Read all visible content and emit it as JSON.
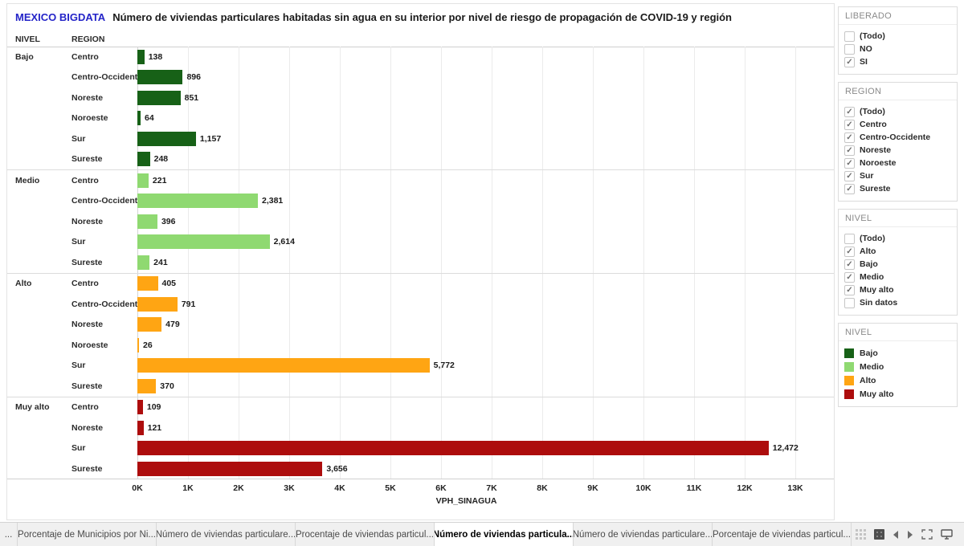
{
  "header": {
    "brand": "MEXICO BIGDATA",
    "title": "Número de viviendas particulares habitadas sin agua en su interior por nivel de riesgo de propagación de COVID-19 y región"
  },
  "columns": {
    "nivel": "NIVEL",
    "region": "REGION"
  },
  "chart_data": {
    "type": "bar",
    "orientation": "horizontal",
    "xlabel": "VPH_SINAGUA",
    "x_ticks": [
      "0K",
      "1K",
      "2K",
      "3K",
      "4K",
      "5K",
      "6K",
      "7K",
      "8K",
      "9K",
      "10K",
      "11K",
      "12K",
      "13K"
    ],
    "xlim": [
      0,
      13000
    ],
    "grid": true,
    "groups": [
      {
        "nivel": "Bajo",
        "color": "#176117",
        "rows": [
          {
            "region": "Centro",
            "value": 138,
            "label": "138"
          },
          {
            "region": "Centro-Occidente",
            "value": 896,
            "label": "896"
          },
          {
            "region": "Noreste",
            "value": 851,
            "label": "851"
          },
          {
            "region": "Noroeste",
            "value": 64,
            "label": "64"
          },
          {
            "region": "Sur",
            "value": 1157,
            "label": "1,157"
          },
          {
            "region": "Sureste",
            "value": 248,
            "label": "248"
          }
        ]
      },
      {
        "nivel": "Medio",
        "color": "#8FD971",
        "rows": [
          {
            "region": "Centro",
            "value": 221,
            "label": "221"
          },
          {
            "region": "Centro-Occidente",
            "value": 2381,
            "label": "2,381"
          },
          {
            "region": "Noreste",
            "value": 396,
            "label": "396"
          },
          {
            "region": "Sur",
            "value": 2614,
            "label": "2,614"
          },
          {
            "region": "Sureste",
            "value": 241,
            "label": "241"
          }
        ]
      },
      {
        "nivel": "Alto",
        "color": "#FFA513",
        "rows": [
          {
            "region": "Centro",
            "value": 405,
            "label": "405"
          },
          {
            "region": "Centro-Occidente",
            "value": 791,
            "label": "791"
          },
          {
            "region": "Noreste",
            "value": 479,
            "label": "479"
          },
          {
            "region": "Noroeste",
            "value": 26,
            "label": "26"
          },
          {
            "region": "Sur",
            "value": 5772,
            "label": "5,772"
          },
          {
            "region": "Sureste",
            "value": 370,
            "label": "370"
          }
        ]
      },
      {
        "nivel": "Muy alto",
        "color": "#AD0D0D",
        "rows": [
          {
            "region": "Centro",
            "value": 109,
            "label": "109"
          },
          {
            "region": "Noreste",
            "value": 121,
            "label": "121"
          },
          {
            "region": "Sur",
            "value": 12472,
            "label": "12,472"
          },
          {
            "region": "Sureste",
            "value": 3656,
            "label": "3,656"
          }
        ]
      }
    ]
  },
  "filters": [
    {
      "title": "LIBERADO",
      "items": [
        {
          "label": "(Todo)",
          "checked": false
        },
        {
          "label": "NO",
          "checked": false
        },
        {
          "label": "SI",
          "checked": true
        }
      ]
    },
    {
      "title": "REGION",
      "items": [
        {
          "label": "(Todo)",
          "checked": true
        },
        {
          "label": "Centro",
          "checked": true
        },
        {
          "label": "Centro-Occidente",
          "checked": true
        },
        {
          "label": "Noreste",
          "checked": true
        },
        {
          "label": "Noroeste",
          "checked": true
        },
        {
          "label": "Sur",
          "checked": true
        },
        {
          "label": "Sureste",
          "checked": true
        }
      ]
    },
    {
      "title": "NIVEL",
      "items": [
        {
          "label": "(Todo)",
          "checked": false
        },
        {
          "label": "Alto",
          "checked": true
        },
        {
          "label": "Bajo",
          "checked": true
        },
        {
          "label": "Medio",
          "checked": true
        },
        {
          "label": "Muy alto",
          "checked": true
        },
        {
          "label": "Sin datos",
          "checked": false
        }
      ]
    }
  ],
  "legend": {
    "title": "NIVEL",
    "items": [
      {
        "label": "Bajo",
        "color": "#176117"
      },
      {
        "label": "Medio",
        "color": "#8FD971"
      },
      {
        "label": "Alto",
        "color": "#FFA513"
      },
      {
        "label": "Muy alto",
        "color": "#AD0D0D"
      }
    ]
  },
  "tabs": [
    {
      "label": "...",
      "active": false
    },
    {
      "label": "Porcentaje de Municipios por Ni...",
      "active": false
    },
    {
      "label": "Número de viviendas particulare...",
      "active": false
    },
    {
      "label": "Procentaje de viviendas particul...",
      "active": false
    },
    {
      "label": "Número de viviendas particula...",
      "active": true
    },
    {
      "label": "Número de viviendas particulare...",
      "active": false
    },
    {
      "label": "Porcentaje de viviendas particul...",
      "active": false
    }
  ],
  "icons": {
    "check": "✓"
  },
  "colors": {
    "brand_blue": "#2424C8",
    "gridline": "#EBEBEB",
    "tabbar_bg": "#F0F0F0"
  }
}
